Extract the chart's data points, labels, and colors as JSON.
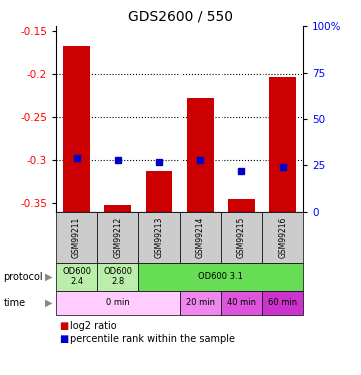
{
  "title": "GDS2600 / 550",
  "samples": [
    "GSM99211",
    "GSM99212",
    "GSM99213",
    "GSM99214",
    "GSM99215",
    "GSM99216"
  ],
  "log2_bottom": [
    -0.355,
    -0.355,
    -0.355,
    -0.355,
    -0.355,
    -0.355
  ],
  "log2_top": [
    -0.168,
    -0.352,
    -0.313,
    -0.228,
    -0.345,
    -0.204
  ],
  "percentile_rank": [
    29,
    28,
    27,
    28,
    22,
    24
  ],
  "ylim": [
    -0.36,
    -0.145
  ],
  "yticks": [
    -0.35,
    -0.3,
    -0.25,
    -0.2,
    -0.15
  ],
  "right_yticks": [
    0,
    25,
    50,
    75,
    100
  ],
  "bar_color": "#cc0000",
  "blue_color": "#0000cc",
  "sample_bg": "#cccccc",
  "light_green": "#bbeeaa",
  "bright_green": "#66dd55",
  "light_pink": "#ffccff",
  "med_pink": "#ee88ee",
  "dark_pink1": "#dd55dd",
  "dark_pink2": "#cc33cc",
  "legend_red": "log2 ratio",
  "legend_blue": "percentile rank within the sample",
  "grid_vals": [
    -0.2,
    -0.25,
    -0.3
  ]
}
